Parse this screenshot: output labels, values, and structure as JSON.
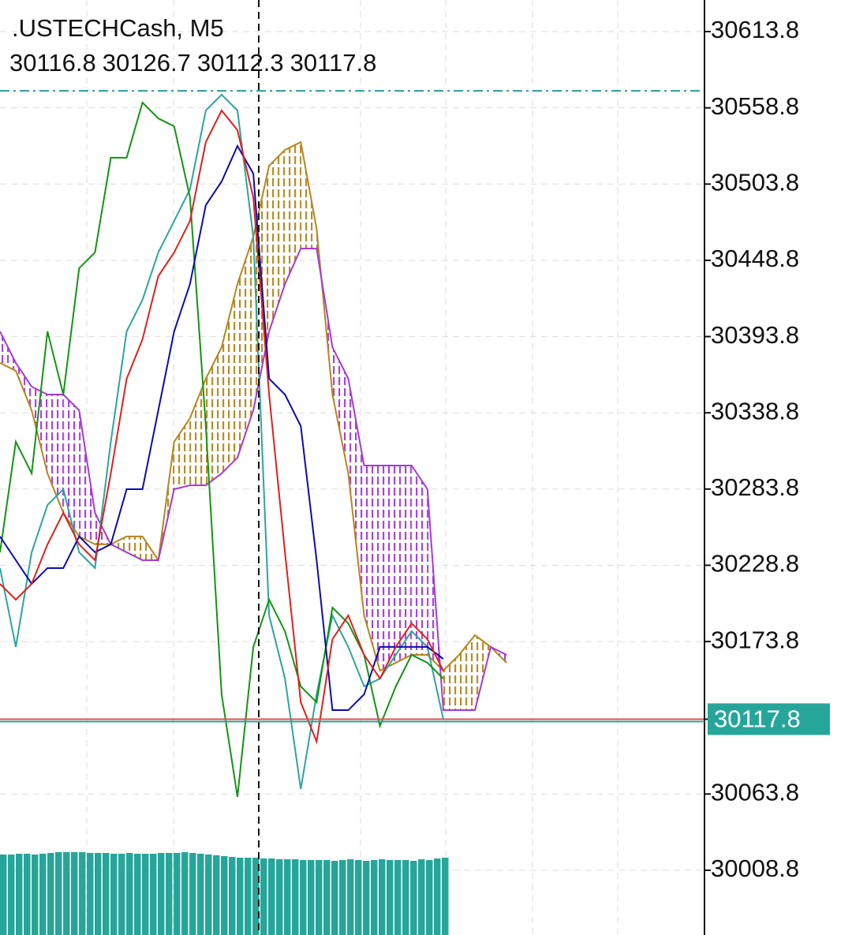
{
  "chart_data": {
    "type": "line",
    "title": ".USTECHCash, M5",
    "ohlc": [
      30116.8,
      30126.7,
      30112.3,
      30117.8
    ],
    "last_price": 30117.8,
    "last_price_color": "#26a69a",
    "level": 30571.1,
    "level_color": "#2a9d94",
    "ylim": [
      29962.1,
      30636.6
    ],
    "yticks": [
      30613.8,
      30558.8,
      30503.8,
      30448.8,
      30393.8,
      30338.8,
      30283.8,
      30228.8,
      30173.8,
      30117.8,
      30063.8,
      30008.8
    ],
    "xlim": [
      0,
      89
    ],
    "grid": true,
    "x": [
      0,
      2,
      4,
      6,
      8,
      10,
      12,
      14,
      16,
      18,
      20,
      22,
      24,
      26,
      28,
      30,
      32,
      34,
      36,
      38,
      40,
      42,
      44,
      46,
      48,
      50,
      52,
      54,
      56
    ],
    "series": [
      {
        "color": "#2ca59d",
        "values": [
          30226.8,
          30169.9,
          30238.2,
          30272.3,
          30283.7,
          30238.2,
          30226.8,
          30317.9,
          30397.5,
          30420.3,
          30454.5,
          30477.2,
          30500.0,
          30556.9,
          30568.3,
          30556.9,
          30465.8,
          30192.6,
          30147.1,
          30067.4,
          30135.7,
          30192.6,
          30169.9,
          30141.4,
          30147.1,
          30164.2,
          30181.2,
          30169.9,
          30117.8
        ]
      },
      {
        "color": "#139413",
        "values": [
          30238.2,
          30317.9,
          30295.1,
          30397.5,
          30352.0,
          30443.1,
          30454.5,
          30522.8,
          30522.8,
          30562.6,
          30551.2,
          30545.5,
          30494.3,
          30329.2,
          30135.7,
          30061.7,
          30169.9,
          30204.0,
          30181.2,
          30141.4,
          30130.0,
          30198.3,
          30186.9,
          30164.2,
          30112.9,
          30141.4,
          30164.2,
          30158.5,
          30147.1
        ]
      },
      {
        "color": "#0b0bb0",
        "values": [
          30249.6,
          30232.5,
          30215.4,
          30226.8,
          30226.8,
          30249.6,
          30238.2,
          30243.9,
          30283.7,
          30283.7,
          30340.6,
          30397.5,
          30431.7,
          30488.6,
          30505.7,
          30531.3,
          30511.4,
          30363.4,
          30352.0,
          30329.2,
          30232.5,
          30124.3,
          30124.3,
          30135.7,
          30169.9,
          30169.9,
          30169.9,
          30169.9,
          30161.3
        ]
      },
      {
        "color": "#e0201b",
        "values": [
          30215.4,
          30204.0,
          30215.4,
          30243.9,
          30266.6,
          30243.9,
          30232.5,
          30295.1,
          30363.4,
          30391.8,
          30437.4,
          30454.5,
          30477.2,
          30534.1,
          30556.9,
          30542.7,
          30494.3,
          30352.0,
          30238.2,
          30130.0,
          30101.6,
          30175.5,
          30192.6,
          30164.2,
          30147.1,
          30169.9,
          30186.9,
          30175.5,
          30152.8
        ]
      }
    ],
    "cloud_x": [
      0,
      2,
      4,
      6,
      8,
      10,
      12,
      14,
      16,
      18,
      20,
      22,
      24,
      26,
      28,
      30,
      32,
      34,
      36,
      38,
      40,
      42,
      44,
      46,
      48,
      50,
      52,
      54,
      56,
      58,
      60,
      62,
      64
    ],
    "span_a": {
      "color": "#b5861e",
      "values": [
        30374.8,
        30369.1,
        30340.6,
        30295.1,
        30266.6,
        30249.6,
        30243.9,
        30243.9,
        30249.6,
        30249.6,
        30232.5,
        30317.9,
        30334.9,
        30363.4,
        30386.2,
        30431.7,
        30465.8,
        30517.1,
        30528.5,
        30534.1,
        30471.5,
        30352.0,
        30295.1,
        30192.6,
        30152.8,
        30158.5,
        30164.2,
        30164.2,
        30152.8,
        30164.2,
        30178.4,
        30169.9,
        30158.5
      ]
    },
    "span_b": {
      "color": "#a63ad6",
      "values": [
        30397.5,
        30374.8,
        30357.7,
        30352.0,
        30352.0,
        30340.6,
        30266.6,
        30243.9,
        30238.2,
        30232.5,
        30232.5,
        30283.7,
        30286.5,
        30286.5,
        30295.1,
        30306.5,
        30340.6,
        30397.5,
        30431.7,
        30457.3,
        30457.3,
        30386.2,
        30363.4,
        30300.8,
        30300.8,
        30300.8,
        30300.8,
        30283.7,
        30124.3,
        30124.3,
        30124.3,
        30169.9,
        30164.2
      ]
    },
    "volume": {
      "color": "#26a69a",
      "values": [
        102,
        102,
        103,
        103,
        102,
        103,
        104,
        105,
        105,
        105,
        105,
        104,
        104,
        104,
        103,
        103,
        104,
        103,
        103,
        103,
        104,
        104,
        104,
        105,
        104,
        103,
        102,
        101,
        100,
        99,
        98,
        98,
        98,
        97,
        97,
        96,
        96,
        96,
        95,
        95,
        95,
        95,
        94,
        95,
        96,
        95,
        94,
        95,
        96,
        95,
        95,
        95,
        94,
        96,
        95,
        97,
        98
      ]
    }
  }
}
